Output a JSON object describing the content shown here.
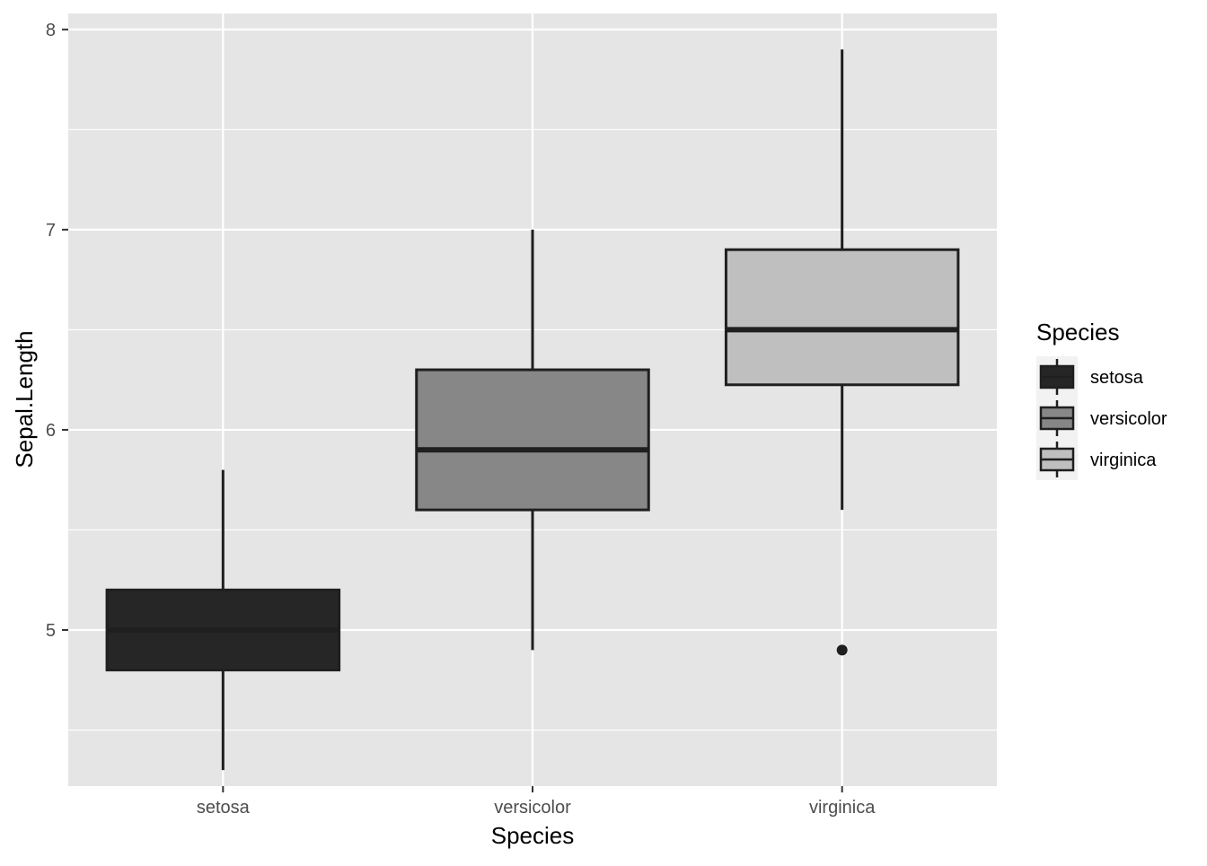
{
  "chart_data": {
    "type": "boxplot",
    "xlabel": "Species",
    "ylabel": "Sepal.Length",
    "categories": [
      "setosa",
      "versicolor",
      "virginica"
    ],
    "ylim": [
      4.22,
      8.08
    ],
    "y_ticks": [
      5,
      6,
      7,
      8
    ],
    "y_tick_labels": [
      "5",
      "6",
      "7",
      "8"
    ],
    "grid": true,
    "legend": {
      "title": "Species",
      "position": "right",
      "entries": [
        "setosa",
        "versicolor",
        "virginica"
      ]
    },
    "series": [
      {
        "category": "setosa",
        "whisker_low": 4.3,
        "q1": 4.8,
        "median": 5.0,
        "q3": 5.2,
        "whisker_high": 5.8,
        "outliers": [],
        "fill": "#262626"
      },
      {
        "category": "versicolor",
        "whisker_low": 4.9,
        "q1": 5.6,
        "median": 5.9,
        "q3": 6.3,
        "whisker_high": 7.0,
        "outliers": [],
        "fill": "#878787"
      },
      {
        "category": "virginica",
        "whisker_low": 5.6,
        "q1": 6.225,
        "median": 6.5,
        "q3": 6.9,
        "whisker_high": 7.9,
        "outliers": [
          4.9
        ],
        "fill": "#bfbfbf"
      }
    ],
    "colors": {
      "panel": "#e5e5e5",
      "grid": "#ffffff",
      "outline": "#1f1f1f"
    }
  }
}
